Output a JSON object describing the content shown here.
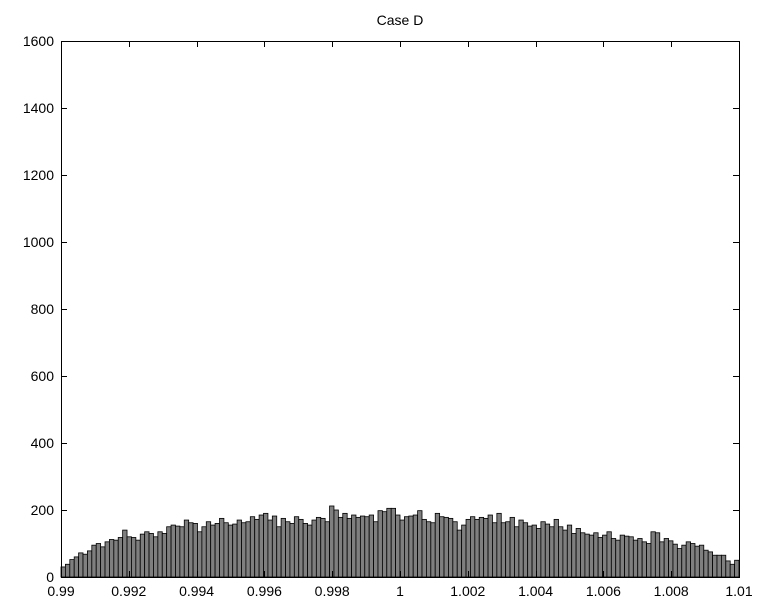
{
  "chart_data": {
    "type": "bar",
    "title": "Case D",
    "xlabel": "",
    "ylabel": "",
    "xlim": [
      0.99,
      1.01
    ],
    "ylim": [
      0,
      1600
    ],
    "x_ticks": [
      "0.99",
      "0.992",
      "0.994",
      "0.996",
      "0.998",
      "1",
      "1.002",
      "1.004",
      "1.006",
      "1.008",
      "1.01"
    ],
    "x_tick_values": [
      0.99,
      0.992,
      0.994,
      0.996,
      0.998,
      1.0,
      1.002,
      1.004,
      1.006,
      1.008,
      1.01
    ],
    "y_ticks": [
      "0",
      "200",
      "400",
      "600",
      "800",
      "1000",
      "1200",
      "1400",
      "1600"
    ],
    "y_tick_values": [
      0,
      200,
      400,
      600,
      800,
      1000,
      1200,
      1400,
      1600
    ],
    "grid": false,
    "bin_range": [
      0.99,
      1.01
    ],
    "bar_color": "#7f7f7f",
    "values": [
      30,
      38,
      52,
      60,
      72,
      68,
      78,
      95,
      100,
      90,
      105,
      112,
      110,
      118,
      140,
      120,
      118,
      110,
      128,
      135,
      130,
      120,
      135,
      130,
      150,
      155,
      152,
      150,
      170,
      162,
      160,
      135,
      150,
      165,
      155,
      160,
      175,
      162,
      155,
      158,
      170,
      162,
      165,
      180,
      172,
      185,
      190,
      170,
      182,
      150,
      175,
      165,
      160,
      180,
      172,
      160,
      155,
      170,
      178,
      175,
      165,
      212,
      200,
      178,
      190,
      175,
      185,
      178,
      182,
      180,
      185,
      165,
      198,
      195,
      205,
      205,
      185,
      170,
      180,
      182,
      185,
      198,
      172,
      165,
      162,
      190,
      180,
      178,
      175,
      165,
      140,
      155,
      172,
      180,
      172,
      178,
      175,
      185,
      162,
      190,
      162,
      165,
      178,
      150,
      170,
      162,
      152,
      155,
      145,
      165,
      158,
      150,
      172,
      150,
      140,
      155,
      130,
      145,
      132,
      128,
      125,
      132,
      118,
      125,
      135,
      115,
      110,
      125,
      122,
      120,
      110,
      115,
      105,
      100,
      135,
      132,
      105,
      115,
      108,
      98,
      85,
      95,
      105,
      100,
      92,
      95,
      80,
      75,
      65,
      65,
      65,
      48,
      38,
      50
    ]
  }
}
